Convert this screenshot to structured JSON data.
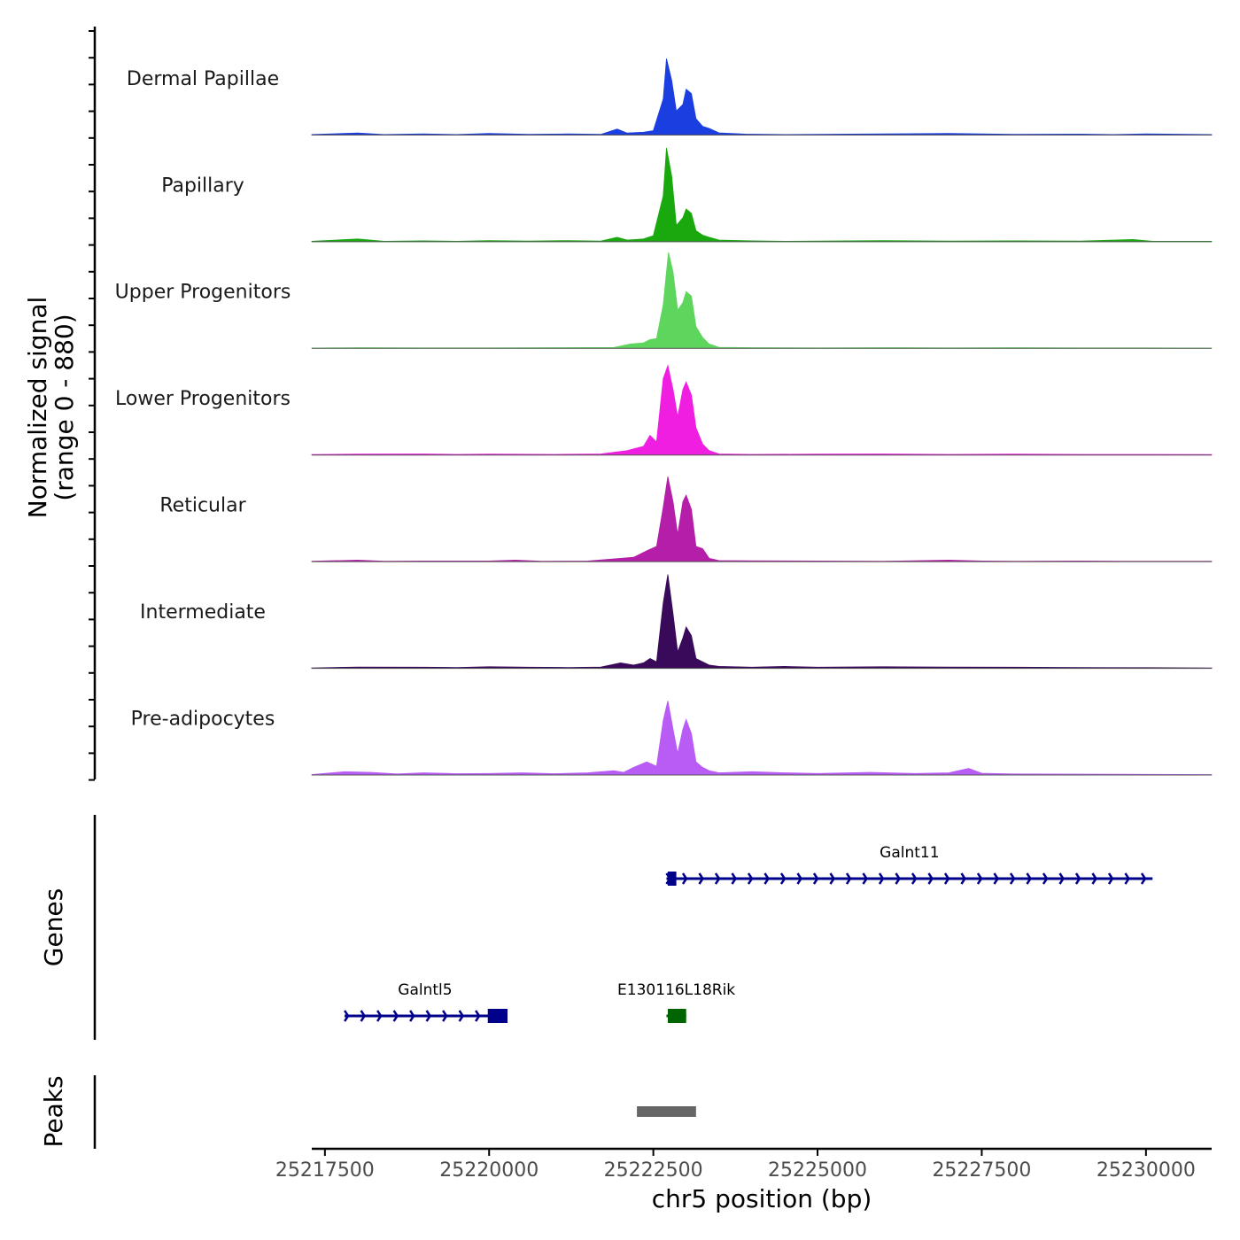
{
  "chart_data": {
    "type": "area",
    "title": "",
    "ylabel": "Normalized signal",
    "ylabel_range": "(range 0 - 880)",
    "ylim": [
      0,
      880
    ],
    "xlabel": "chr5 position (bp)",
    "xlim": [
      25217300,
      25231000
    ],
    "x_ticks": [
      25217500,
      25220000,
      25222500,
      25225000,
      25227500,
      25230000
    ],
    "x_tick_labels": [
      "25217500",
      "25220000",
      "25222500",
      "25225000",
      "25227500",
      "25230000"
    ],
    "series": [
      {
        "name": "Dermal Papillae",
        "color": "#1a3ee0",
        "points": [
          [
            25217300,
            4
          ],
          [
            25218000,
            18
          ],
          [
            25218400,
            4
          ],
          [
            25219000,
            10
          ],
          [
            25219500,
            4
          ],
          [
            25220000,
            14
          ],
          [
            25220600,
            6
          ],
          [
            25221200,
            10
          ],
          [
            25221700,
            6
          ],
          [
            25221950,
            55
          ],
          [
            25222100,
            18
          ],
          [
            25222350,
            25
          ],
          [
            25222500,
            40
          ],
          [
            25222650,
            330
          ],
          [
            25222700,
            700
          ],
          [
            25222780,
            500
          ],
          [
            25222850,
            220
          ],
          [
            25222950,
            280
          ],
          [
            25223000,
            420
          ],
          [
            25223080,
            380
          ],
          [
            25223150,
            150
          ],
          [
            25223250,
            80
          ],
          [
            25223350,
            60
          ],
          [
            25223500,
            20
          ],
          [
            25223900,
            8
          ],
          [
            25224500,
            4
          ],
          [
            25225500,
            8
          ],
          [
            25226000,
            10
          ],
          [
            25227000,
            14
          ],
          [
            25228000,
            6
          ],
          [
            25229000,
            8
          ],
          [
            25229500,
            4
          ],
          [
            25230000,
            10
          ],
          [
            25231000,
            4
          ]
        ]
      },
      {
        "name": "Papillary",
        "color": "#1aa80f",
        "points": [
          [
            25217300,
            4
          ],
          [
            25218000,
            25
          ],
          [
            25218400,
            4
          ],
          [
            25219000,
            8
          ],
          [
            25219500,
            4
          ],
          [
            25220000,
            10
          ],
          [
            25220600,
            6
          ],
          [
            25221200,
            10
          ],
          [
            25221700,
            6
          ],
          [
            25221950,
            40
          ],
          [
            25222100,
            15
          ],
          [
            25222350,
            25
          ],
          [
            25222500,
            55
          ],
          [
            25222650,
            420
          ],
          [
            25222700,
            860
          ],
          [
            25222780,
            600
          ],
          [
            25222850,
            150
          ],
          [
            25222950,
            220
          ],
          [
            25223000,
            300
          ],
          [
            25223080,
            260
          ],
          [
            25223150,
            100
          ],
          [
            25223250,
            60
          ],
          [
            25223350,
            40
          ],
          [
            25223500,
            15
          ],
          [
            25224000,
            8
          ],
          [
            25224500,
            4
          ],
          [
            25225500,
            8
          ],
          [
            25226000,
            10
          ],
          [
            25227000,
            6
          ],
          [
            25228000,
            8
          ],
          [
            25229000,
            6
          ],
          [
            25229800,
            20
          ],
          [
            25230100,
            4
          ],
          [
            25231000,
            4
          ]
        ]
      },
      {
        "name": "Upper Progenitors",
        "color": "#5ed65e",
        "points": [
          [
            25217300,
            2
          ],
          [
            25218000,
            6
          ],
          [
            25219000,
            4
          ],
          [
            25220000,
            4
          ],
          [
            25221000,
            6
          ],
          [
            25221900,
            8
          ],
          [
            25222150,
            40
          ],
          [
            25222350,
            50
          ],
          [
            25222450,
            80
          ],
          [
            25222550,
            90
          ],
          [
            25222650,
            400
          ],
          [
            25222730,
            880
          ],
          [
            25222800,
            700
          ],
          [
            25222870,
            350
          ],
          [
            25222950,
            420
          ],
          [
            25223000,
            520
          ],
          [
            25223080,
            480
          ],
          [
            25223150,
            200
          ],
          [
            25223250,
            100
          ],
          [
            25223350,
            40
          ],
          [
            25223500,
            10
          ],
          [
            25224000,
            6
          ],
          [
            25225000,
            4
          ],
          [
            25226000,
            6
          ],
          [
            25227000,
            4
          ],
          [
            25228000,
            6
          ],
          [
            25229000,
            4
          ],
          [
            25230000,
            4
          ],
          [
            25231000,
            2
          ]
        ]
      },
      {
        "name": "Lower Progenitors",
        "color": "#f01ee0",
        "points": [
          [
            25217300,
            4
          ],
          [
            25218000,
            8
          ],
          [
            25219000,
            10
          ],
          [
            25219500,
            6
          ],
          [
            25220000,
            8
          ],
          [
            25221000,
            6
          ],
          [
            25221700,
            10
          ],
          [
            25222100,
            40
          ],
          [
            25222350,
            80
          ],
          [
            25222450,
            180
          ],
          [
            25222550,
            120
          ],
          [
            25222650,
            700
          ],
          [
            25222720,
            820
          ],
          [
            25222800,
            600
          ],
          [
            25222870,
            350
          ],
          [
            25222950,
            600
          ],
          [
            25223000,
            670
          ],
          [
            25223080,
            550
          ],
          [
            25223150,
            250
          ],
          [
            25223250,
            100
          ],
          [
            25223350,
            40
          ],
          [
            25223500,
            10
          ],
          [
            25224000,
            6
          ],
          [
            25225000,
            8
          ],
          [
            25226000,
            10
          ],
          [
            25227000,
            6
          ],
          [
            25228000,
            8
          ],
          [
            25229000,
            6
          ],
          [
            25230000,
            6
          ],
          [
            25231000,
            4
          ]
        ]
      },
      {
        "name": "Reticular",
        "color": "#b41ea8",
        "points": [
          [
            25217300,
            4
          ],
          [
            25218000,
            14
          ],
          [
            25218400,
            4
          ],
          [
            25219000,
            6
          ],
          [
            25219500,
            6
          ],
          [
            25220000,
            6
          ],
          [
            25220400,
            14
          ],
          [
            25220800,
            4
          ],
          [
            25221500,
            6
          ],
          [
            25222000,
            30
          ],
          [
            25222200,
            40
          ],
          [
            25222400,
            100
          ],
          [
            25222550,
            140
          ],
          [
            25222650,
            500
          ],
          [
            25222720,
            780
          ],
          [
            25222800,
            550
          ],
          [
            25222870,
            250
          ],
          [
            25222950,
            550
          ],
          [
            25223000,
            610
          ],
          [
            25223080,
            480
          ],
          [
            25223150,
            140
          ],
          [
            25223250,
            120
          ],
          [
            25223350,
            30
          ],
          [
            25223500,
            10
          ],
          [
            25224000,
            8
          ],
          [
            25225000,
            6
          ],
          [
            25226000,
            4
          ],
          [
            25227000,
            14
          ],
          [
            25227500,
            6
          ],
          [
            25228000,
            4
          ],
          [
            25229000,
            6
          ],
          [
            25230000,
            4
          ],
          [
            25231000,
            4
          ]
        ]
      },
      {
        "name": "Intermediate",
        "color": "#3a0a5a",
        "points": [
          [
            25217300,
            4
          ],
          [
            25218000,
            12
          ],
          [
            25219000,
            10
          ],
          [
            25219500,
            8
          ],
          [
            25220000,
            14
          ],
          [
            25220600,
            10
          ],
          [
            25221200,
            8
          ],
          [
            25221700,
            12
          ],
          [
            25222000,
            50
          ],
          [
            25222200,
            30
          ],
          [
            25222350,
            50
          ],
          [
            25222450,
            90
          ],
          [
            25222550,
            60
          ],
          [
            25222650,
            600
          ],
          [
            25222720,
            860
          ],
          [
            25222800,
            500
          ],
          [
            25222870,
            150
          ],
          [
            25222950,
            280
          ],
          [
            25223000,
            380
          ],
          [
            25223080,
            300
          ],
          [
            25223150,
            90
          ],
          [
            25223250,
            60
          ],
          [
            25223350,
            30
          ],
          [
            25223500,
            18
          ],
          [
            25224000,
            10
          ],
          [
            25224500,
            18
          ],
          [
            25225000,
            10
          ],
          [
            25226000,
            14
          ],
          [
            25227000,
            12
          ],
          [
            25228000,
            10
          ],
          [
            25229000,
            8
          ],
          [
            25230000,
            6
          ],
          [
            25231000,
            4
          ]
        ]
      },
      {
        "name": "Pre-adipocytes",
        "color": "#b85cf5",
        "points": [
          [
            25217300,
            4
          ],
          [
            25217800,
            30
          ],
          [
            25218200,
            24
          ],
          [
            25218600,
            10
          ],
          [
            25219000,
            20
          ],
          [
            25219500,
            12
          ],
          [
            25220000,
            14
          ],
          [
            25220500,
            20
          ],
          [
            25221000,
            12
          ],
          [
            25221500,
            20
          ],
          [
            25221900,
            40
          ],
          [
            25222050,
            24
          ],
          [
            25222200,
            70
          ],
          [
            25222400,
            120
          ],
          [
            25222550,
            80
          ],
          [
            25222650,
            500
          ],
          [
            25222720,
            680
          ],
          [
            25222800,
            420
          ],
          [
            25222870,
            200
          ],
          [
            25222950,
            420
          ],
          [
            25223000,
            510
          ],
          [
            25223080,
            380
          ],
          [
            25223150,
            120
          ],
          [
            25223250,
            70
          ],
          [
            25223350,
            40
          ],
          [
            25223500,
            20
          ],
          [
            25224000,
            30
          ],
          [
            25224500,
            20
          ],
          [
            25225000,
            14
          ],
          [
            25225800,
            24
          ],
          [
            25226500,
            14
          ],
          [
            25227000,
            20
          ],
          [
            25227300,
            60
          ],
          [
            25227500,
            16
          ],
          [
            25228000,
            10
          ],
          [
            25229000,
            8
          ],
          [
            25230000,
            6
          ],
          [
            25231000,
            4
          ]
        ]
      }
    ],
    "genes": [
      {
        "name": "Galnt11",
        "strand": "+",
        "color": "#00008b",
        "start": 25222700,
        "end": 25230100,
        "exons": [
          [
            25222720,
            25222850
          ]
        ]
      },
      {
        "name": "Galntl5",
        "strand": "+",
        "color": "#00008b",
        "start": 25217800,
        "end": 25220250,
        "exons": [
          [
            25219980,
            25220280
          ]
        ]
      },
      {
        "name": "E130116L18Rik",
        "strand": "-",
        "color": "#006400",
        "start": 25222700,
        "end": 25223000,
        "exons": [
          [
            25222720,
            25223000
          ]
        ]
      }
    ],
    "peaks_label": "Peaks",
    "genes_label": "Genes",
    "peaks": [
      [
        25222250,
        25223150
      ]
    ]
  }
}
